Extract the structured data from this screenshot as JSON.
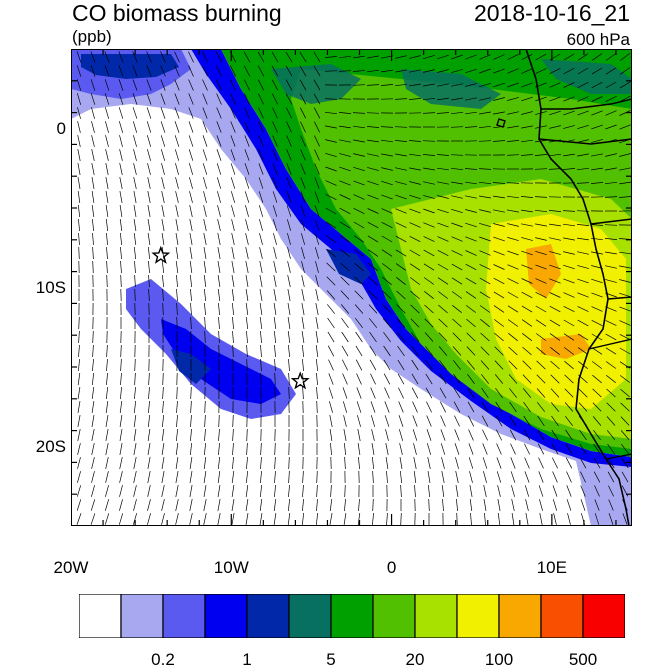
{
  "header": {
    "title": "CO biomass burning",
    "units": "(ppb)",
    "datetime": "2018-10-16_21",
    "level": "600 hPa"
  },
  "map": {
    "extent": {
      "lon": [
        -20,
        15
      ],
      "lat": [
        -25,
        5
      ]
    },
    "x_ticks": [
      {
        "lon": -20,
        "label": "20W"
      },
      {
        "lon": -10,
        "label": "10W"
      },
      {
        "lon": 0,
        "label": "0"
      },
      {
        "lon": 10,
        "label": "10E"
      }
    ],
    "y_ticks": [
      {
        "lat": 0,
        "label": "0"
      },
      {
        "lat": -10,
        "label": "10S"
      },
      {
        "lat": -20,
        "label": "20S"
      }
    ],
    "markers": [
      {
        "type": "star",
        "lon": -14.4,
        "lat": -8.0
      },
      {
        "type": "star",
        "lon": -5.7,
        "lat": -15.9
      }
    ]
  },
  "colorbar": {
    "colors": [
      "#ffffff",
      "#a8a8f0",
      "#5a5af0",
      "#0000f0",
      "#0028a8",
      "#087060",
      "#00a000",
      "#50c000",
      "#a8e000",
      "#f0f000",
      "#f8a800",
      "#f85000",
      "#f80000"
    ],
    "labels": [
      {
        "after_box": 2,
        "text": "0.2"
      },
      {
        "after_box": 4,
        "text": "1"
      },
      {
        "after_box": 6,
        "text": "5"
      },
      {
        "after_box": 8,
        "text": "20"
      },
      {
        "after_box": 10,
        "text": "100"
      },
      {
        "after_box": 12,
        "text": "500"
      }
    ]
  }
}
